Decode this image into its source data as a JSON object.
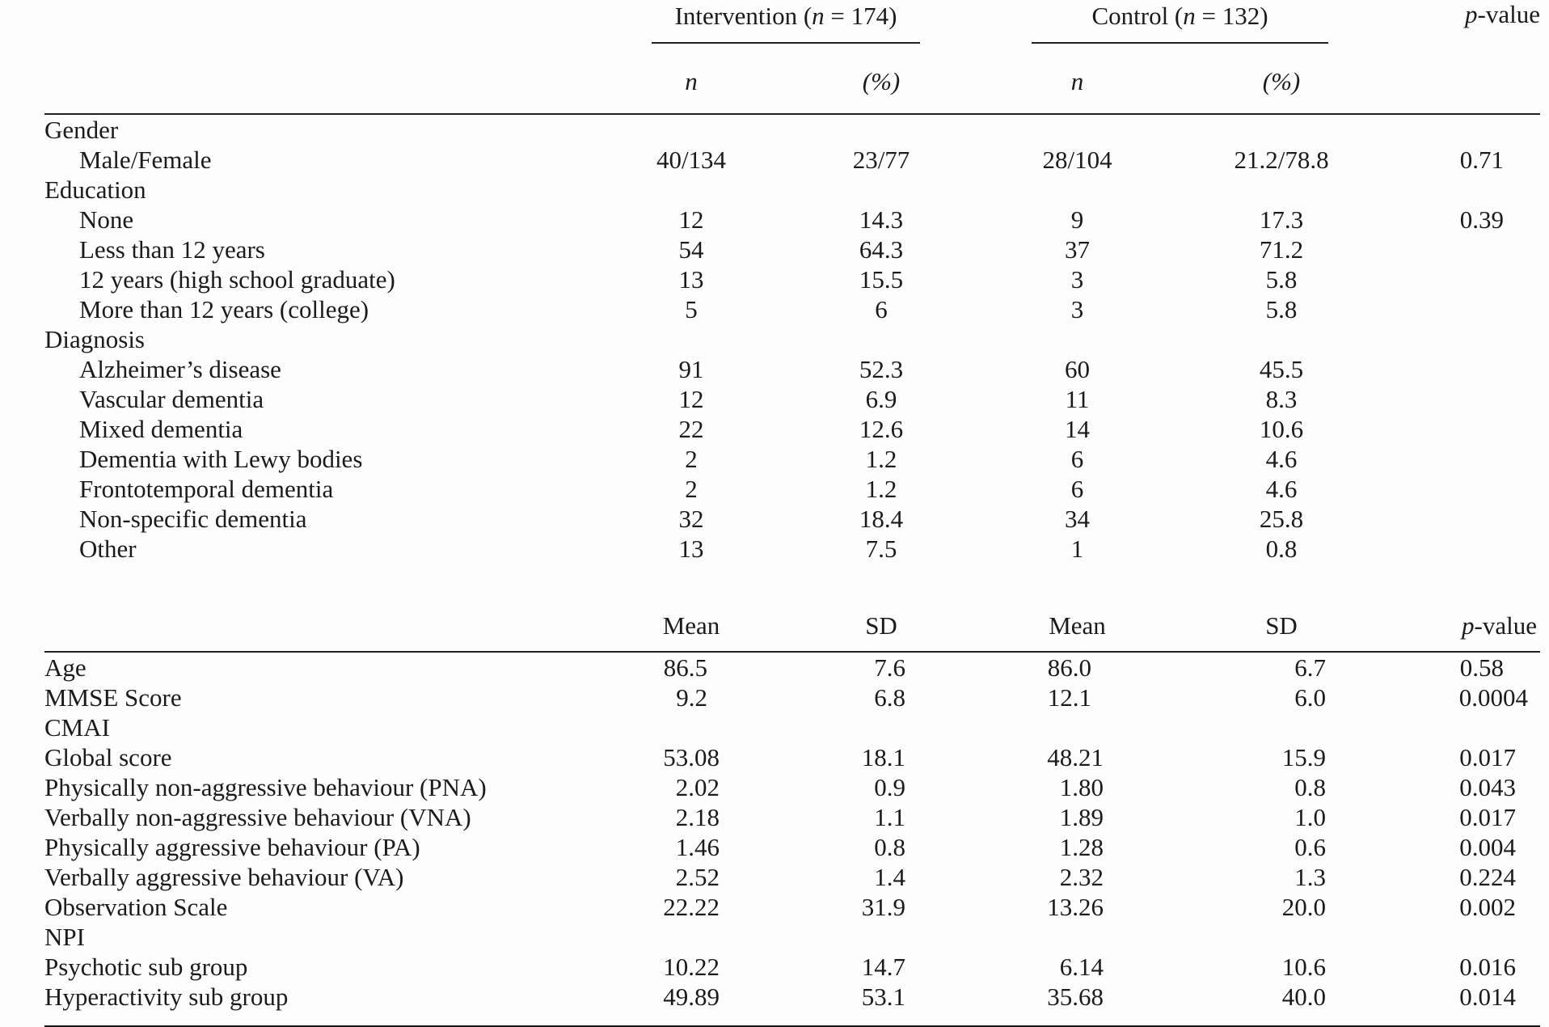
{
  "table": {
    "group_headers": {
      "intervention": {
        "prefix": "Intervention (",
        "var": "n",
        "suffix": " = 174)"
      },
      "control": {
        "prefix": "Control (",
        "var": "n",
        "suffix": " = 132)"
      }
    },
    "p_header": {
      "var": "p",
      "suffix": "-value"
    },
    "count_subheaders": {
      "n": "n",
      "pct": "(%)"
    },
    "stat_subheaders": {
      "mean": "Mean",
      "sd": "SD"
    },
    "count_rows": [
      {
        "label": "Gender",
        "indent": false,
        "values": [
          "",
          "",
          "",
          "",
          ""
        ]
      },
      {
        "label": "Male/Female",
        "indent": true,
        "values": [
          "40/134",
          "23/77",
          "28/104",
          "21.2/78.8",
          "0.71"
        ]
      },
      {
        "label": "Education",
        "indent": false,
        "values": [
          "",
          "",
          "",
          "",
          ""
        ]
      },
      {
        "label": "None",
        "indent": true,
        "values": [
          "12",
          "14.3",
          "9",
          "17.3",
          "0.39"
        ]
      },
      {
        "label": "Less than 12 years",
        "indent": true,
        "values": [
          "54",
          "64.3",
          "37",
          "71.2",
          ""
        ]
      },
      {
        "label": "12 years (high school graduate)",
        "indent": true,
        "values": [
          "13",
          "15.5",
          "3",
          "5.8",
          ""
        ]
      },
      {
        "label": "More than 12 years (college)",
        "indent": true,
        "values": [
          "5",
          "6",
          "3",
          "5.8",
          ""
        ]
      },
      {
        "label": "Diagnosis",
        "indent": false,
        "values": [
          "",
          "",
          "",
          "",
          ""
        ]
      },
      {
        "label": "Alzheimer’s disease",
        "indent": true,
        "values": [
          "91",
          "52.3",
          "60",
          "45.5",
          ""
        ]
      },
      {
        "label": "Vascular dementia",
        "indent": true,
        "values": [
          "12",
          "6.9",
          "11",
          "8.3",
          ""
        ]
      },
      {
        "label": "Mixed dementia",
        "indent": true,
        "values": [
          "22",
          "12.6",
          "14",
          "10.6",
          ""
        ]
      },
      {
        "label": "Dementia with Lewy bodies",
        "indent": true,
        "values": [
          "2",
          "1.2",
          "6",
          "4.6",
          ""
        ]
      },
      {
        "label": "Frontotemporal dementia",
        "indent": true,
        "values": [
          "2",
          "1.2",
          "6",
          "4.6",
          ""
        ]
      },
      {
        "label": "Non-specific dementia",
        "indent": true,
        "values": [
          "32",
          "18.4",
          "34",
          "25.8",
          ""
        ]
      },
      {
        "label": "Other",
        "indent": true,
        "values": [
          "13",
          "7.5",
          "1",
          "0.8",
          ""
        ]
      }
    ],
    "stat_rows": [
      {
        "label": "Age",
        "indent": false,
        "values": [
          "86.5",
          "7.6",
          "86.0",
          "6.7",
          "0.58"
        ]
      },
      {
        "label": "MMSE Score",
        "indent": false,
        "values": [
          "9.2",
          "6.8",
          "12.1",
          "6.0",
          "0.0004"
        ]
      },
      {
        "label": "CMAI",
        "indent": false,
        "values": [
          "",
          "",
          "",
          "",
          ""
        ]
      },
      {
        "label": "Global score",
        "indent": false,
        "values": [
          "53.08",
          "18.1",
          "48.21",
          "15.9",
          "0.017"
        ]
      },
      {
        "label": "Physically non-aggressive behaviour (PNA)",
        "indent": false,
        "values": [
          "2.02",
          "0.9",
          "1.80",
          "0.8",
          "0.043"
        ]
      },
      {
        "label": "Verbally non-aggressive behaviour (VNA)",
        "indent": false,
        "values": [
          "2.18",
          "1.1",
          "1.89",
          "1.0",
          "0.017"
        ]
      },
      {
        "label": "Physically aggressive behaviour (PA)",
        "indent": false,
        "values": [
          "1.46",
          "0.8",
          "1.28",
          "0.6",
          "0.004"
        ]
      },
      {
        "label": "Verbally aggressive behaviour (VA)",
        "indent": false,
        "values": [
          "2.52",
          "1.4",
          "2.32",
          "1.3",
          "0.224"
        ]
      },
      {
        "label": "Observation Scale",
        "indent": false,
        "values": [
          "22.22",
          "31.9",
          "13.26",
          "20.0",
          "0.002"
        ]
      },
      {
        "label": "NPI",
        "indent": false,
        "values": [
          "",
          "",
          "",
          "",
          ""
        ]
      },
      {
        "label": "Psychotic sub group",
        "indent": false,
        "values": [
          "10.22",
          "14.7",
          "6.14",
          "10.6",
          "0.016"
        ]
      },
      {
        "label": "Hyperactivity sub group",
        "indent": false,
        "values": [
          "49.89",
          "53.1",
          "35.68",
          "40.0",
          "0.014"
        ]
      }
    ]
  }
}
